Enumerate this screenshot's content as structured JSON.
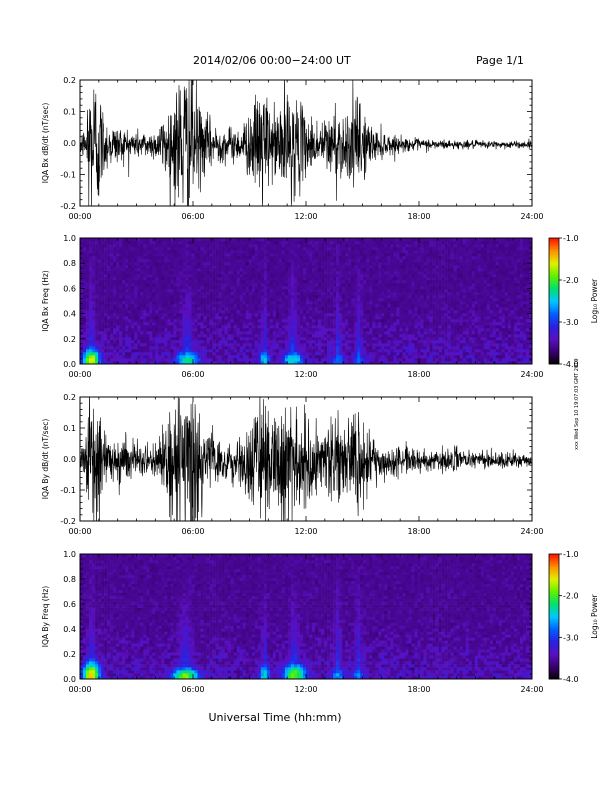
{
  "header": {
    "title": "2014/02/06  00:00−24:00 UT",
    "page": "Page 1/1"
  },
  "footer": {
    "xlabel": "Universal Time (hh:mm)",
    "side_stamp": "xxx Wed Sep 10 19:07:03 GMT 2019"
  },
  "colorbar": {
    "label": "Log₁₀ Power",
    "ticks": [
      "-1.0",
      "-2.0",
      "-3.0",
      "-4.0"
    ],
    "tick_values": [
      -1.0,
      -2.0,
      -3.0,
      -4.0
    ],
    "range": [
      -4.0,
      -1.0
    ],
    "colormap": [
      "#000000",
      "#3a0070",
      "#5a10c0",
      "#2a20e0",
      "#0060ff",
      "#00c8ff",
      "#00e070",
      "#60f000",
      "#e0f000",
      "#ff9000",
      "#ff1000"
    ]
  },
  "chart_data": [
    {
      "type": "line",
      "name": "panel-1",
      "ylabel": "IQA Bx dB/dt (nT/sec)",
      "xlim": [
        0,
        24
      ],
      "ylim": [
        -0.2,
        0.2
      ],
      "xticks": [
        "00:00",
        "06:00",
        "12:00",
        "18:00",
        "24:00"
      ],
      "xtick_values": [
        0,
        6,
        12,
        18,
        24
      ],
      "yticks": [
        "0.2",
        "0.1",
        "0.0",
        "-0.1",
        "-0.2"
      ],
      "ytick_values": [
        0.2,
        0.1,
        0.0,
        -0.1,
        -0.2
      ],
      "line_color": "#000000",
      "baseline": -0.005,
      "envelope": [
        [
          0.0,
          0.035
        ],
        [
          0.3,
          0.05
        ],
        [
          0.45,
          0.22
        ],
        [
          0.9,
          0.22
        ],
        [
          1.3,
          0.08
        ],
        [
          1.7,
          0.06
        ],
        [
          3.0,
          0.04
        ],
        [
          4.0,
          0.04
        ],
        [
          4.8,
          0.12
        ],
        [
          5.3,
          0.22
        ],
        [
          5.9,
          0.22
        ],
        [
          6.5,
          0.09
        ],
        [
          7.5,
          0.05
        ],
        [
          8.5,
          0.05
        ],
        [
          9.3,
          0.12
        ],
        [
          9.7,
          0.2
        ],
        [
          10.2,
          0.08
        ],
        [
          10.8,
          0.17
        ],
        [
          11.5,
          0.14
        ],
        [
          12.0,
          0.08
        ],
        [
          13.0,
          0.07
        ],
        [
          13.5,
          0.13
        ],
        [
          14.0,
          0.08
        ],
        [
          14.6,
          0.14
        ],
        [
          15.2,
          0.09
        ],
        [
          15.5,
          0.05
        ],
        [
          17.0,
          0.02
        ],
        [
          20.0,
          0.012
        ],
        [
          24.0,
          0.01
        ]
      ]
    },
    {
      "type": "heatmap",
      "name": "panel-2",
      "ylabel": "IQA Bx Freq (Hz)",
      "xlim": [
        0,
        24
      ],
      "ylim": [
        0.0,
        1.0
      ],
      "xticks": [
        "00:00",
        "06:00",
        "12:00",
        "18:00",
        "24:00"
      ],
      "xtick_values": [
        0,
        6,
        12,
        18,
        24
      ],
      "yticks": [
        "1.0",
        "0.8",
        "0.6",
        "0.4",
        "0.2",
        "0.0"
      ],
      "ytick_values": [
        1.0,
        0.8,
        0.6,
        0.4,
        0.2,
        0.0
      ],
      "background_log_power": -3.7,
      "hotspots": [
        {
          "t": 0.6,
          "f": 0.03,
          "log_power": -1.6,
          "t_width": 0.5,
          "f_height": 0.1
        },
        {
          "t": 5.7,
          "f": 0.03,
          "log_power": -2.2,
          "t_width": 0.7,
          "f_height": 0.08
        },
        {
          "t": 9.8,
          "f": 0.03,
          "log_power": -2.4,
          "t_width": 0.3,
          "f_height": 0.1
        },
        {
          "t": 11.3,
          "f": 0.03,
          "log_power": -2.3,
          "t_width": 0.6,
          "f_height": 0.08
        },
        {
          "t": 13.7,
          "f": 0.03,
          "log_power": -2.7,
          "t_width": 0.4,
          "f_height": 0.06
        },
        {
          "t": 14.8,
          "f": 0.03,
          "log_power": -2.8,
          "t_width": 0.4,
          "f_height": 0.06
        }
      ]
    },
    {
      "type": "line",
      "name": "panel-3",
      "ylabel": "IQA By dB/dt (nT/sec)",
      "xlim": [
        0,
        24
      ],
      "ylim": [
        -0.2,
        0.2
      ],
      "xticks": [
        "00:00",
        "06:00",
        "12:00",
        "18:00",
        "24:00"
      ],
      "xtick_values": [
        0,
        6,
        12,
        18,
        24
      ],
      "yticks": [
        "0.2",
        "0.1",
        "0.0",
        "-0.1",
        "-0.2"
      ],
      "ytick_values": [
        0.2,
        0.1,
        0.0,
        -0.1,
        -0.2
      ],
      "line_color": "#000000",
      "baseline": -0.005,
      "envelope": [
        [
          0.0,
          0.035
        ],
        [
          0.3,
          0.06
        ],
        [
          0.45,
          0.22
        ],
        [
          0.9,
          0.22
        ],
        [
          1.3,
          0.1
        ],
        [
          1.7,
          0.07
        ],
        [
          3.0,
          0.05
        ],
        [
          4.0,
          0.05
        ],
        [
          4.8,
          0.15
        ],
        [
          5.3,
          0.22
        ],
        [
          6.0,
          0.22
        ],
        [
          6.6,
          0.1
        ],
        [
          7.5,
          0.06
        ],
        [
          8.5,
          0.07
        ],
        [
          9.3,
          0.15
        ],
        [
          9.7,
          0.2
        ],
        [
          10.2,
          0.13
        ],
        [
          10.8,
          0.2
        ],
        [
          11.5,
          0.18
        ],
        [
          12.0,
          0.12
        ],
        [
          13.0,
          0.1
        ],
        [
          13.5,
          0.14
        ],
        [
          14.0,
          0.1
        ],
        [
          14.6,
          0.14
        ],
        [
          15.2,
          0.1
        ],
        [
          15.5,
          0.06
        ],
        [
          17.0,
          0.04
        ],
        [
          20.0,
          0.03
        ],
        [
          24.0,
          0.02
        ]
      ]
    },
    {
      "type": "heatmap",
      "name": "panel-4",
      "ylabel": "IQA By Freq (Hz)",
      "xlim": [
        0,
        24
      ],
      "ylim": [
        0.0,
        1.0
      ],
      "xticks": [
        "00:00",
        "06:00",
        "12:00",
        "18:00",
        "24:00"
      ],
      "xtick_values": [
        0,
        6,
        12,
        18,
        24
      ],
      "yticks": [
        "1.0",
        "0.8",
        "0.6",
        "0.4",
        "0.2",
        "0.0"
      ],
      "ytick_values": [
        1.0,
        0.8,
        0.6,
        0.4,
        0.2,
        0.0
      ],
      "background_log_power": -3.7,
      "hotspots": [
        {
          "t": 0.6,
          "f": 0.03,
          "log_power": -1.5,
          "t_width": 0.5,
          "f_height": 0.12
        },
        {
          "t": 5.6,
          "f": 0.02,
          "log_power": -1.8,
          "t_width": 0.8,
          "f_height": 0.08
        },
        {
          "t": 9.8,
          "f": 0.03,
          "log_power": -2.3,
          "t_width": 0.3,
          "f_height": 0.1
        },
        {
          "t": 11.4,
          "f": 0.03,
          "log_power": -1.9,
          "t_width": 0.7,
          "f_height": 0.1
        },
        {
          "t": 13.7,
          "f": 0.03,
          "log_power": -2.6,
          "t_width": 0.4,
          "f_height": 0.07
        },
        {
          "t": 14.8,
          "f": 0.03,
          "log_power": -2.7,
          "t_width": 0.4,
          "f_height": 0.07
        }
      ]
    }
  ]
}
